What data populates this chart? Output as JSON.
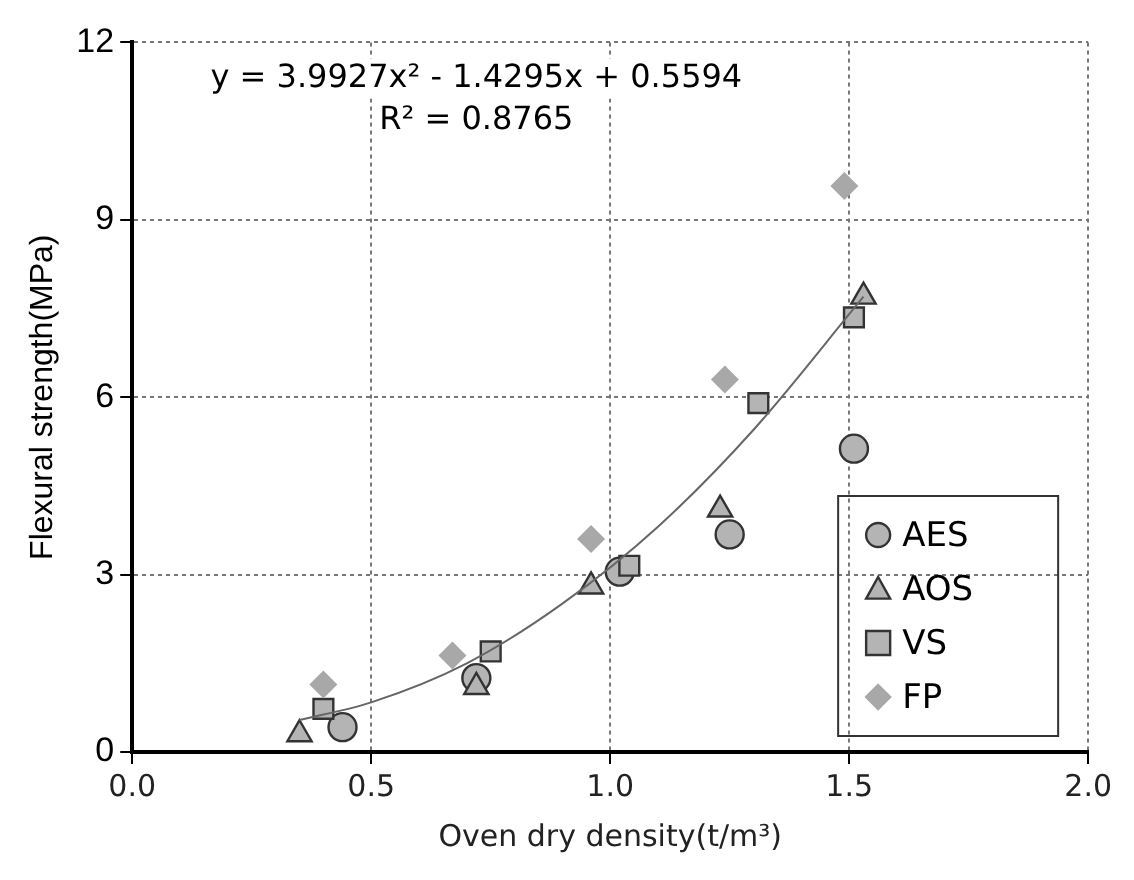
{
  "chart_data": {
    "type": "scatter",
    "xlabel": "Oven dry density(t/m³)",
    "ylabel": "Flexural strength(MPa)",
    "xlim": [
      0,
      2
    ],
    "xticks": [
      {
        "value": 0,
        "label": "0.0"
      },
      {
        "value": 0.5,
        "label": "0.5"
      },
      {
        "value": 1,
        "label": "1.0"
      },
      {
        "value": 1.5,
        "label": "1.5"
      },
      {
        "value": 2,
        "label": "2.0"
      }
    ],
    "ylim": [
      0,
      12
    ],
    "yticks": [
      0,
      3,
      6,
      9,
      12
    ],
    "grid": true,
    "legend": "bottom right",
    "annotations": [
      "y = 3.9927x² - 1.4295x + 0.5594",
      "R² = 0.8765"
    ],
    "series": [
      {
        "name": "AES",
        "color": "#b4b4b4",
        "marker": "circle",
        "x": [
          0.44,
          0.72,
          1.02,
          1.25,
          1.51
        ],
        "values": [
          0.42,
          1.25,
          3.05,
          3.68,
          5.13
        ]
      },
      {
        "name": "AOS",
        "color": "#b4b4b4",
        "marker": "triangle",
        "x": [
          0.35,
          0.72,
          0.96,
          1.23,
          1.53
        ],
        "values": [
          0.3,
          1.1,
          2.8,
          4.1,
          7.7
        ]
      },
      {
        "name": "VS",
        "color": "#b4b4b4",
        "marker": "square",
        "x": [
          0.4,
          0.75,
          1.04,
          1.31,
          1.51
        ],
        "values": [
          0.73,
          1.7,
          3.15,
          5.9,
          7.35
        ]
      },
      {
        "name": "FP",
        "color": "#a8a8a8",
        "marker": "diamond",
        "x": [
          0.4,
          0.67,
          0.96,
          1.24,
          1.49
        ],
        "values": [
          1.14,
          1.63,
          3.6,
          6.3,
          9.57
        ]
      },
      {
        "type": "line",
        "color": "#666666",
        "marker": "none",
        "x": [
          0.35,
          0.5,
          0.7,
          0.9,
          1.1,
          1.3,
          1.53
        ],
        "values": [
          0.54,
          0.84,
          1.5,
          2.51,
          3.81,
          5.45,
          7.7
        ]
      }
    ]
  }
}
